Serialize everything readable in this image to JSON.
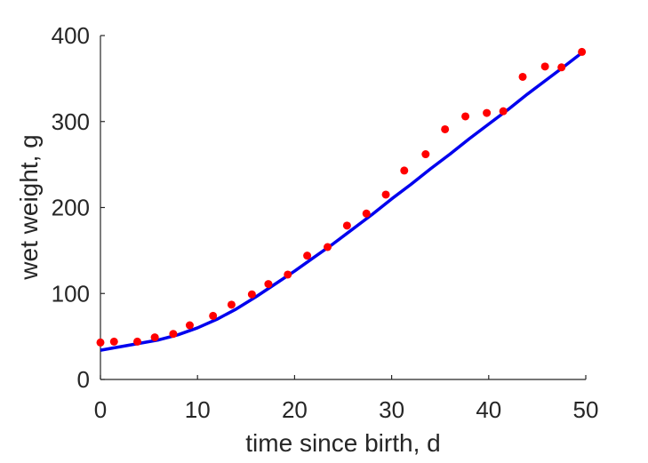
{
  "chart_data": {
    "type": "scatter",
    "xlabel": "time since birth, d",
    "ylabel": "wet weight, g",
    "xlim": [
      0,
      50
    ],
    "ylim": [
      0,
      400
    ],
    "xticks": [
      "0",
      "10",
      "20",
      "30",
      "40",
      "50"
    ],
    "yticks": [
      "0",
      "100",
      "200",
      "300",
      "400"
    ],
    "grid": false,
    "legend": "none",
    "series": [
      {
        "kind": "points",
        "color": "#ff0000",
        "x": [
          0,
          1.4,
          3.8,
          5.6,
          7.5,
          9.2,
          11.6,
          13.5,
          15.6,
          17.3,
          19.3,
          21.3,
          23.4,
          25.4,
          27.4,
          29.4,
          31.3,
          33.5,
          35.5,
          37.6,
          39.8,
          41.5,
          43.5,
          45.8,
          47.5,
          49.6
        ],
        "y": [
          43,
          44,
          44,
          49,
          53,
          63,
          74,
          87,
          99,
          111,
          122,
          144,
          154,
          179,
          193,
          215,
          243,
          262,
          291,
          306,
          310,
          312,
          352,
          364,
          363,
          381
        ]
      },
      {
        "kind": "line",
        "color": "#0000ee",
        "x": [
          0,
          2,
          4,
          6,
          8,
          10,
          12,
          14,
          16,
          18,
          20,
          22,
          24,
          26,
          28,
          30,
          32,
          34,
          36,
          38,
          40,
          42,
          44,
          46,
          48,
          49.6
        ],
        "y": [
          34,
          38,
          42,
          46,
          52,
          60,
          70,
          82,
          96,
          111,
          126,
          142,
          158,
          175,
          192,
          210,
          227,
          245,
          262,
          280,
          297,
          314,
          332,
          349,
          366,
          380
        ]
      }
    ]
  }
}
